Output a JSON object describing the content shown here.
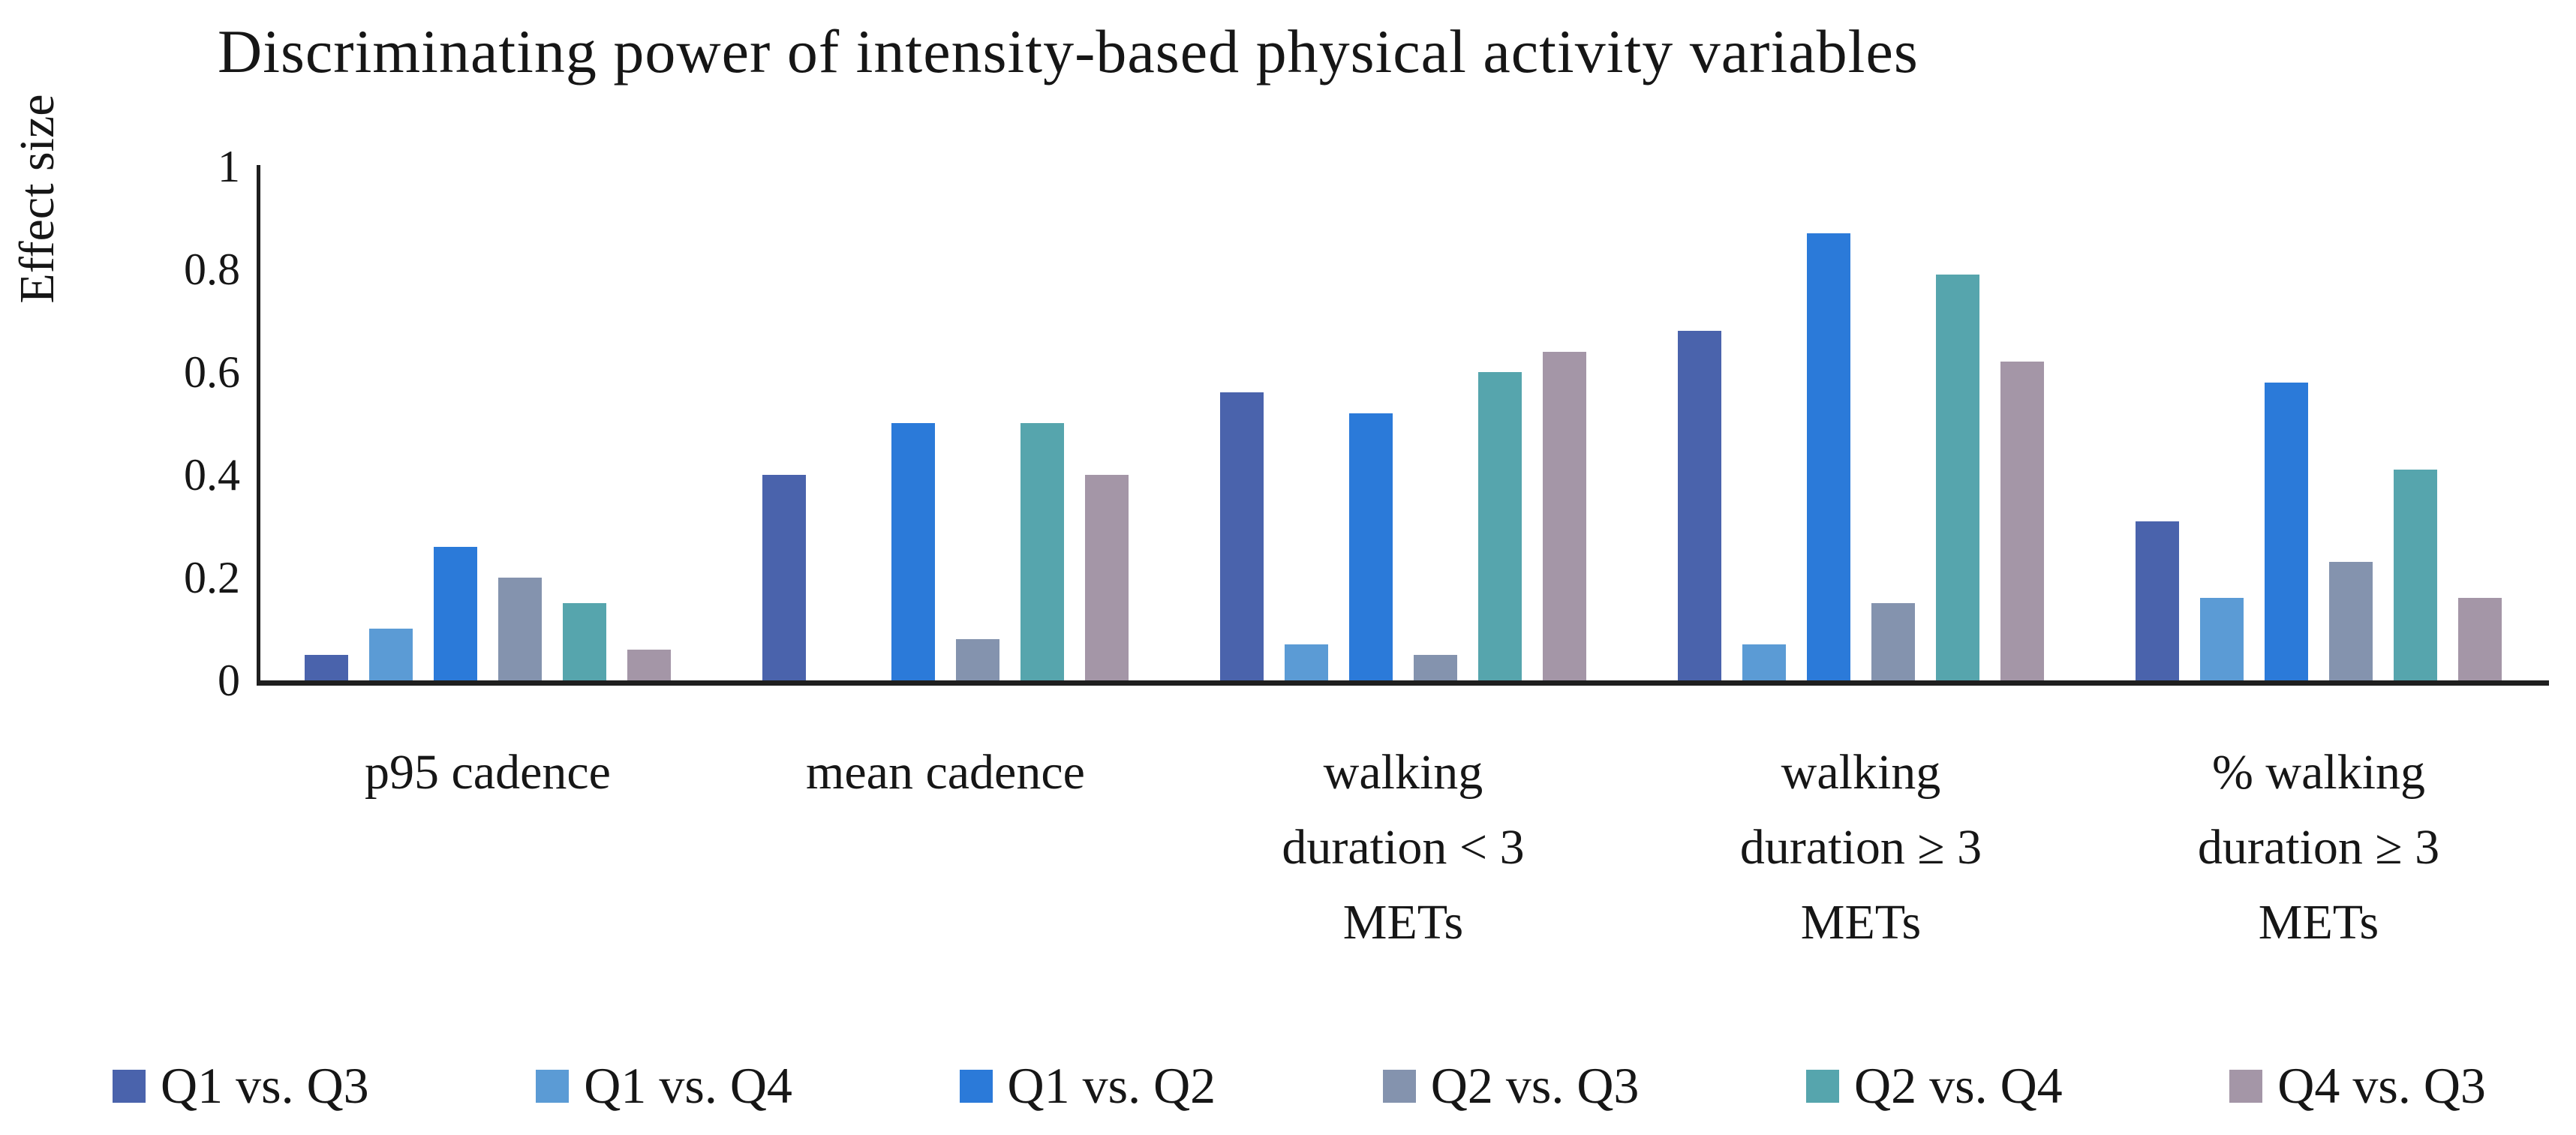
{
  "title": "Discriminating power of intensity-based physical activity variables",
  "y_axis": {
    "label": "Effect size",
    "tick_labels": [
      "1",
      "0.8",
      "0.6",
      "0.4",
      "0.2",
      "0"
    ],
    "tick_values": [
      1,
      0.8,
      0.6,
      0.4,
      0.2,
      0
    ]
  },
  "legend": {
    "position": "bottom",
    "items": [
      "Q1 vs. Q3",
      "Q1 vs. Q4",
      "Q1 vs. Q2",
      "Q2 vs. Q3",
      "Q2 vs. Q4",
      "Q4 vs. Q3"
    ]
  },
  "chart_data": {
    "type": "bar",
    "title": "Discriminating power of intensity-based physical activity variables",
    "xlabel": "",
    "ylabel": "Effect size",
    "ylim": [
      0,
      1
    ],
    "grid": false,
    "legend_position": "bottom",
    "categories": [
      "p95 cadence",
      "mean cadence",
      "walking duration < 3 METs",
      "walking duration ≥ 3 METs",
      "% walking duration ≥ 3 METs"
    ],
    "categories_lines": [
      [
        "p95 cadence"
      ],
      [
        "mean cadence"
      ],
      [
        "walking",
        "duration < 3",
        "METs"
      ],
      [
        "walking",
        "duration ≥ 3",
        "METs"
      ],
      [
        "% walking",
        "duration ≥ 3",
        "METs"
      ]
    ],
    "series": [
      {
        "name": "Q1 vs. Q3",
        "color": "#4A63AC",
        "values": [
          0.05,
          0.4,
          0.56,
          0.68,
          0.31
        ]
      },
      {
        "name": "Q1 vs. Q4",
        "color": "#5B9BD5",
        "values": [
          0.1,
          0.0,
          0.07,
          0.07,
          0.16
        ]
      },
      {
        "name": "Q1 vs. Q2",
        "color": "#2B7AD9",
        "values": [
          0.26,
          0.5,
          0.52,
          0.87,
          0.58
        ]
      },
      {
        "name": "Q2 vs. Q3",
        "color": "#8493AE",
        "values": [
          0.2,
          0.08,
          0.05,
          0.15,
          0.23
        ]
      },
      {
        "name": "Q2 vs. Q4",
        "color": "#56A5AD",
        "values": [
          0.15,
          0.5,
          0.6,
          0.79,
          0.41
        ]
      },
      {
        "name": "Q4 vs. Q3",
        "color": "#A496A7",
        "values": [
          0.06,
          0.4,
          0.64,
          0.62,
          0.16
        ]
      }
    ]
  },
  "geometry": {
    "baseline_y": 907,
    "unit_height": 685,
    "tick_font_half": 30
  }
}
